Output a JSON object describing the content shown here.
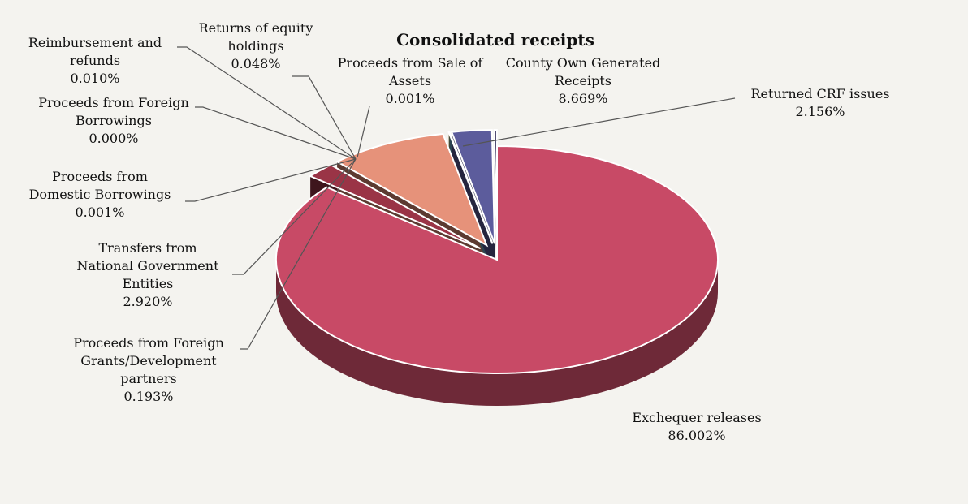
{
  "chart_data": {
    "type": "pie",
    "title": "Consolidated receipts",
    "slices": [
      {
        "label_lines": [
          "Exchequer releases",
          "86.002%"
        ],
        "value": 86.002,
        "color": "#c84a66"
      },
      {
        "label_lines": [
          "Returned CRF issues",
          "2.156%"
        ],
        "value": 2.156,
        "color": "#9a3446"
      },
      {
        "label_lines": [
          "County Own Generated",
          "Receipts",
          "8.669%"
        ],
        "value": 8.669,
        "color": "#e6927a"
      },
      {
        "label_lines": [
          "Proceeds from Sale of",
          "Assets",
          "0.001%"
        ],
        "value": 0.001,
        "color": "#7aa36a"
      },
      {
        "label_lines": [
          "Returns of equity",
          "holdings",
          "0.048%"
        ],
        "value": 0.048,
        "color": "#d8c25a"
      },
      {
        "label_lines": [
          "Reimbursement and",
          "refunds",
          "0.010%"
        ],
        "value": 0.01,
        "color": "#6aa8c8"
      },
      {
        "label_lines": [
          "Proceeds from Foreign",
          "Borrowings",
          "0.000%"
        ],
        "value": 0.0,
        "color": "#888888"
      },
      {
        "label_lines": [
          "Proceeds from",
          "Domestic Borrowings",
          "0.001%"
        ],
        "value": 0.001,
        "color": "#c87ac0"
      },
      {
        "label_lines": [
          "Transfers from",
          "National Government",
          "Entities",
          "2.920%"
        ],
        "value": 2.92,
        "color": "#5c5c9c"
      },
      {
        "label_lines": [
          "Proceeds from Foreign",
          "Grants/Development",
          "partners",
          "0.193%"
        ],
        "value": 0.193,
        "color": "#2f2a56"
      }
    ]
  },
  "colors": {
    "background": "#f4f3ef",
    "leader_line": "#555555",
    "text": "#111111"
  }
}
